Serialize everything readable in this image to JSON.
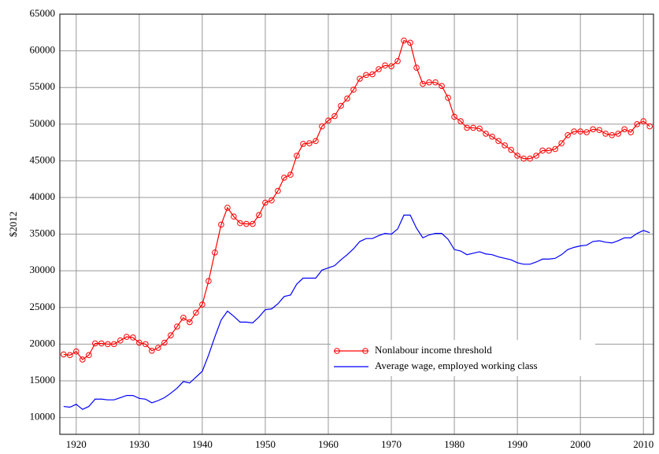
{
  "chart_data": {
    "type": "line",
    "y_label": "$2012",
    "x": [
      1918,
      1919,
      1920,
      1921,
      1922,
      1923,
      1924,
      1925,
      1926,
      1927,
      1928,
      1929,
      1930,
      1931,
      1932,
      1933,
      1934,
      1935,
      1936,
      1937,
      1938,
      1939,
      1940,
      1941,
      1942,
      1943,
      1944,
      1945,
      1946,
      1947,
      1948,
      1949,
      1950,
      1951,
      1952,
      1953,
      1954,
      1955,
      1956,
      1957,
      1958,
      1959,
      1960,
      1961,
      1962,
      1963,
      1964,
      1965,
      1966,
      1967,
      1968,
      1969,
      1970,
      1971,
      1972,
      1973,
      1974,
      1975,
      1976,
      1977,
      1978,
      1979,
      1980,
      1981,
      1982,
      1983,
      1984,
      1985,
      1986,
      1987,
      1988,
      1989,
      1990,
      1991,
      1992,
      1993,
      1994,
      1995,
      1996,
      1997,
      1998,
      1999,
      2000,
      2001,
      2002,
      2003,
      2004,
      2005,
      2006,
      2007,
      2008,
      2009,
      2010,
      2011
    ],
    "series": [
      {
        "name": "Nonlabour income threshold",
        "color": "#ff0000",
        "marker": "circle",
        "values": [
          18600,
          18500,
          19000,
          17900,
          18500,
          20100,
          20100,
          20000,
          20000,
          20500,
          21000,
          20900,
          20200,
          20000,
          19100,
          19500,
          20200,
          21200,
          22400,
          23600,
          23000,
          24300,
          25400,
          28600,
          32500,
          36300,
          38600,
          37400,
          36500,
          36400,
          36400,
          37600,
          39300,
          39600,
          40900,
          42700,
          43100,
          45700,
          47300,
          47400,
          47700,
          49700,
          50500,
          51100,
          52500,
          53500,
          54700,
          56200,
          56700,
          56800,
          57500,
          58000,
          57900,
          58600,
          61400,
          61100,
          57700,
          55500,
          55700,
          55700,
          55200,
          53600,
          51000,
          50400,
          49500,
          49500,
          49400,
          48700,
          48300,
          47700,
          47100,
          46500,
          45700,
          45300,
          45300,
          45700,
          46400,
          46400,
          46600,
          47400,
          48500,
          49000,
          49000,
          48900,
          49300,
          49200,
          48700,
          48500,
          48700,
          49300,
          48900,
          50000,
          50400,
          49700
        ]
      },
      {
        "name": "Average wage, employed working class",
        "color": "#0000ff",
        "marker": "none",
        "values": [
          11500,
          11400,
          11800,
          11100,
          11500,
          12500,
          12500,
          12400,
          12400,
          12700,
          13000,
          13000,
          12600,
          12500,
          12000,
          12300,
          12700,
          13300,
          14000,
          14900,
          14700,
          15500,
          16300,
          18500,
          21000,
          23300,
          24500,
          23800,
          23000,
          23000,
          22900,
          23700,
          24700,
          24800,
          25500,
          26500,
          26700,
          28200,
          29000,
          29000,
          29000,
          30100,
          30400,
          30700,
          31500,
          32200,
          33000,
          34000,
          34400,
          34400,
          34800,
          35100,
          35000,
          35700,
          37600,
          37600,
          35800,
          34500,
          34900,
          35100,
          35100,
          34300,
          32900,
          32700,
          32200,
          32400,
          32600,
          32300,
          32200,
          31900,
          31700,
          31500,
          31100,
          30900,
          30900,
          31200,
          31600,
          31600,
          31700,
          32200,
          32900,
          33200,
          33400,
          33500,
          34000,
          34100,
          33900,
          33800,
          34100,
          34500,
          34500,
          35100,
          35500,
          35200
        ]
      }
    ],
    "xlim": [
      1917.4,
      2011.6
    ],
    "ylim": [
      7700,
      65000
    ],
    "xticks": [
      1920,
      1930,
      1940,
      1950,
      1960,
      1970,
      1980,
      1990,
      2000,
      2010
    ],
    "yticks": [
      10000,
      15000,
      20000,
      25000,
      30000,
      35000,
      40000,
      45000,
      50000,
      55000,
      60000,
      65000
    ],
    "grid": true
  }
}
